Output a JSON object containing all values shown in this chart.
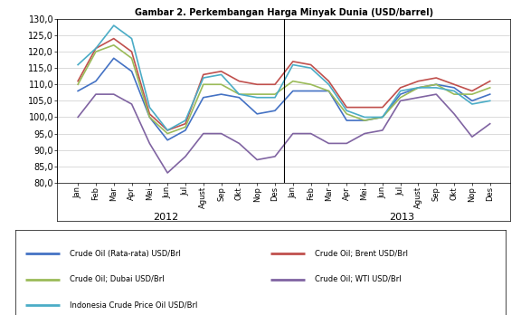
{
  "title": "Gambar 2. Perkembangan Harga Minyak Dunia (USD/barrel)",
  "months_2012": [
    "Jan",
    "Feb",
    "Mar",
    "Apr",
    "Mei",
    "Jun",
    "Jul",
    "Agust",
    "Sep",
    "Okt",
    "Nop",
    "Des"
  ],
  "months_2013": [
    "Jan",
    "Feb",
    "Mar",
    "Apr",
    "Mei",
    "Jun",
    "Jul",
    "Agust",
    "Sep",
    "Okt",
    "Nop",
    "Des"
  ],
  "crude_oil_rata": [
    108,
    111,
    118,
    114,
    100,
    93,
    96,
    106,
    107,
    106,
    101,
    102,
    108,
    108,
    108,
    99,
    99,
    100,
    107,
    109,
    110,
    109,
    105,
    107
  ],
  "crude_oil_brent": [
    111,
    121,
    124,
    120,
    101,
    96,
    98,
    113,
    114,
    111,
    110,
    110,
    117,
    116,
    111,
    103,
    103,
    103,
    109,
    111,
    112,
    110,
    108,
    111
  ],
  "crude_oil_dubai": [
    110,
    120,
    122,
    118,
    100,
    95,
    97,
    110,
    110,
    107,
    107,
    107,
    111,
    110,
    108,
    101,
    99,
    100,
    106,
    109,
    110,
    107,
    107,
    109
  ],
  "crude_oil_wti": [
    100,
    107,
    107,
    104,
    92,
    83,
    88,
    95,
    95,
    92,
    87,
    88,
    95,
    95,
    92,
    92,
    95,
    96,
    105,
    106,
    107,
    101,
    94,
    98
  ],
  "indonesia_crude": [
    116,
    121,
    128,
    124,
    103,
    96,
    99,
    112,
    113,
    107,
    106,
    106,
    116,
    115,
    110,
    102,
    100,
    100,
    108,
    109,
    109,
    108,
    104,
    105
  ],
  "colors": {
    "rata": "#4472C4",
    "brent": "#C0504D",
    "dubai": "#9BBB59",
    "wti": "#8064A2",
    "indonesia": "#4BACC6"
  },
  "ylim": [
    80,
    130
  ],
  "yticks": [
    80.0,
    85.0,
    90.0,
    95.0,
    100.0,
    105.0,
    110.0,
    115.0,
    120.0,
    125.0,
    130.0
  ],
  "legend_labels": [
    "Crude Oil (Rata-rata) USD/Brl",
    "Crude Oil; Brent USD/Brl",
    "Crude Oil; Dubai USD/Brl",
    "Crude Oil; WTI USD/Brl",
    "Indonesia Crude Price Oil USD/Brl"
  ],
  "year_2012_label": "2012",
  "year_2013_label": "2013"
}
